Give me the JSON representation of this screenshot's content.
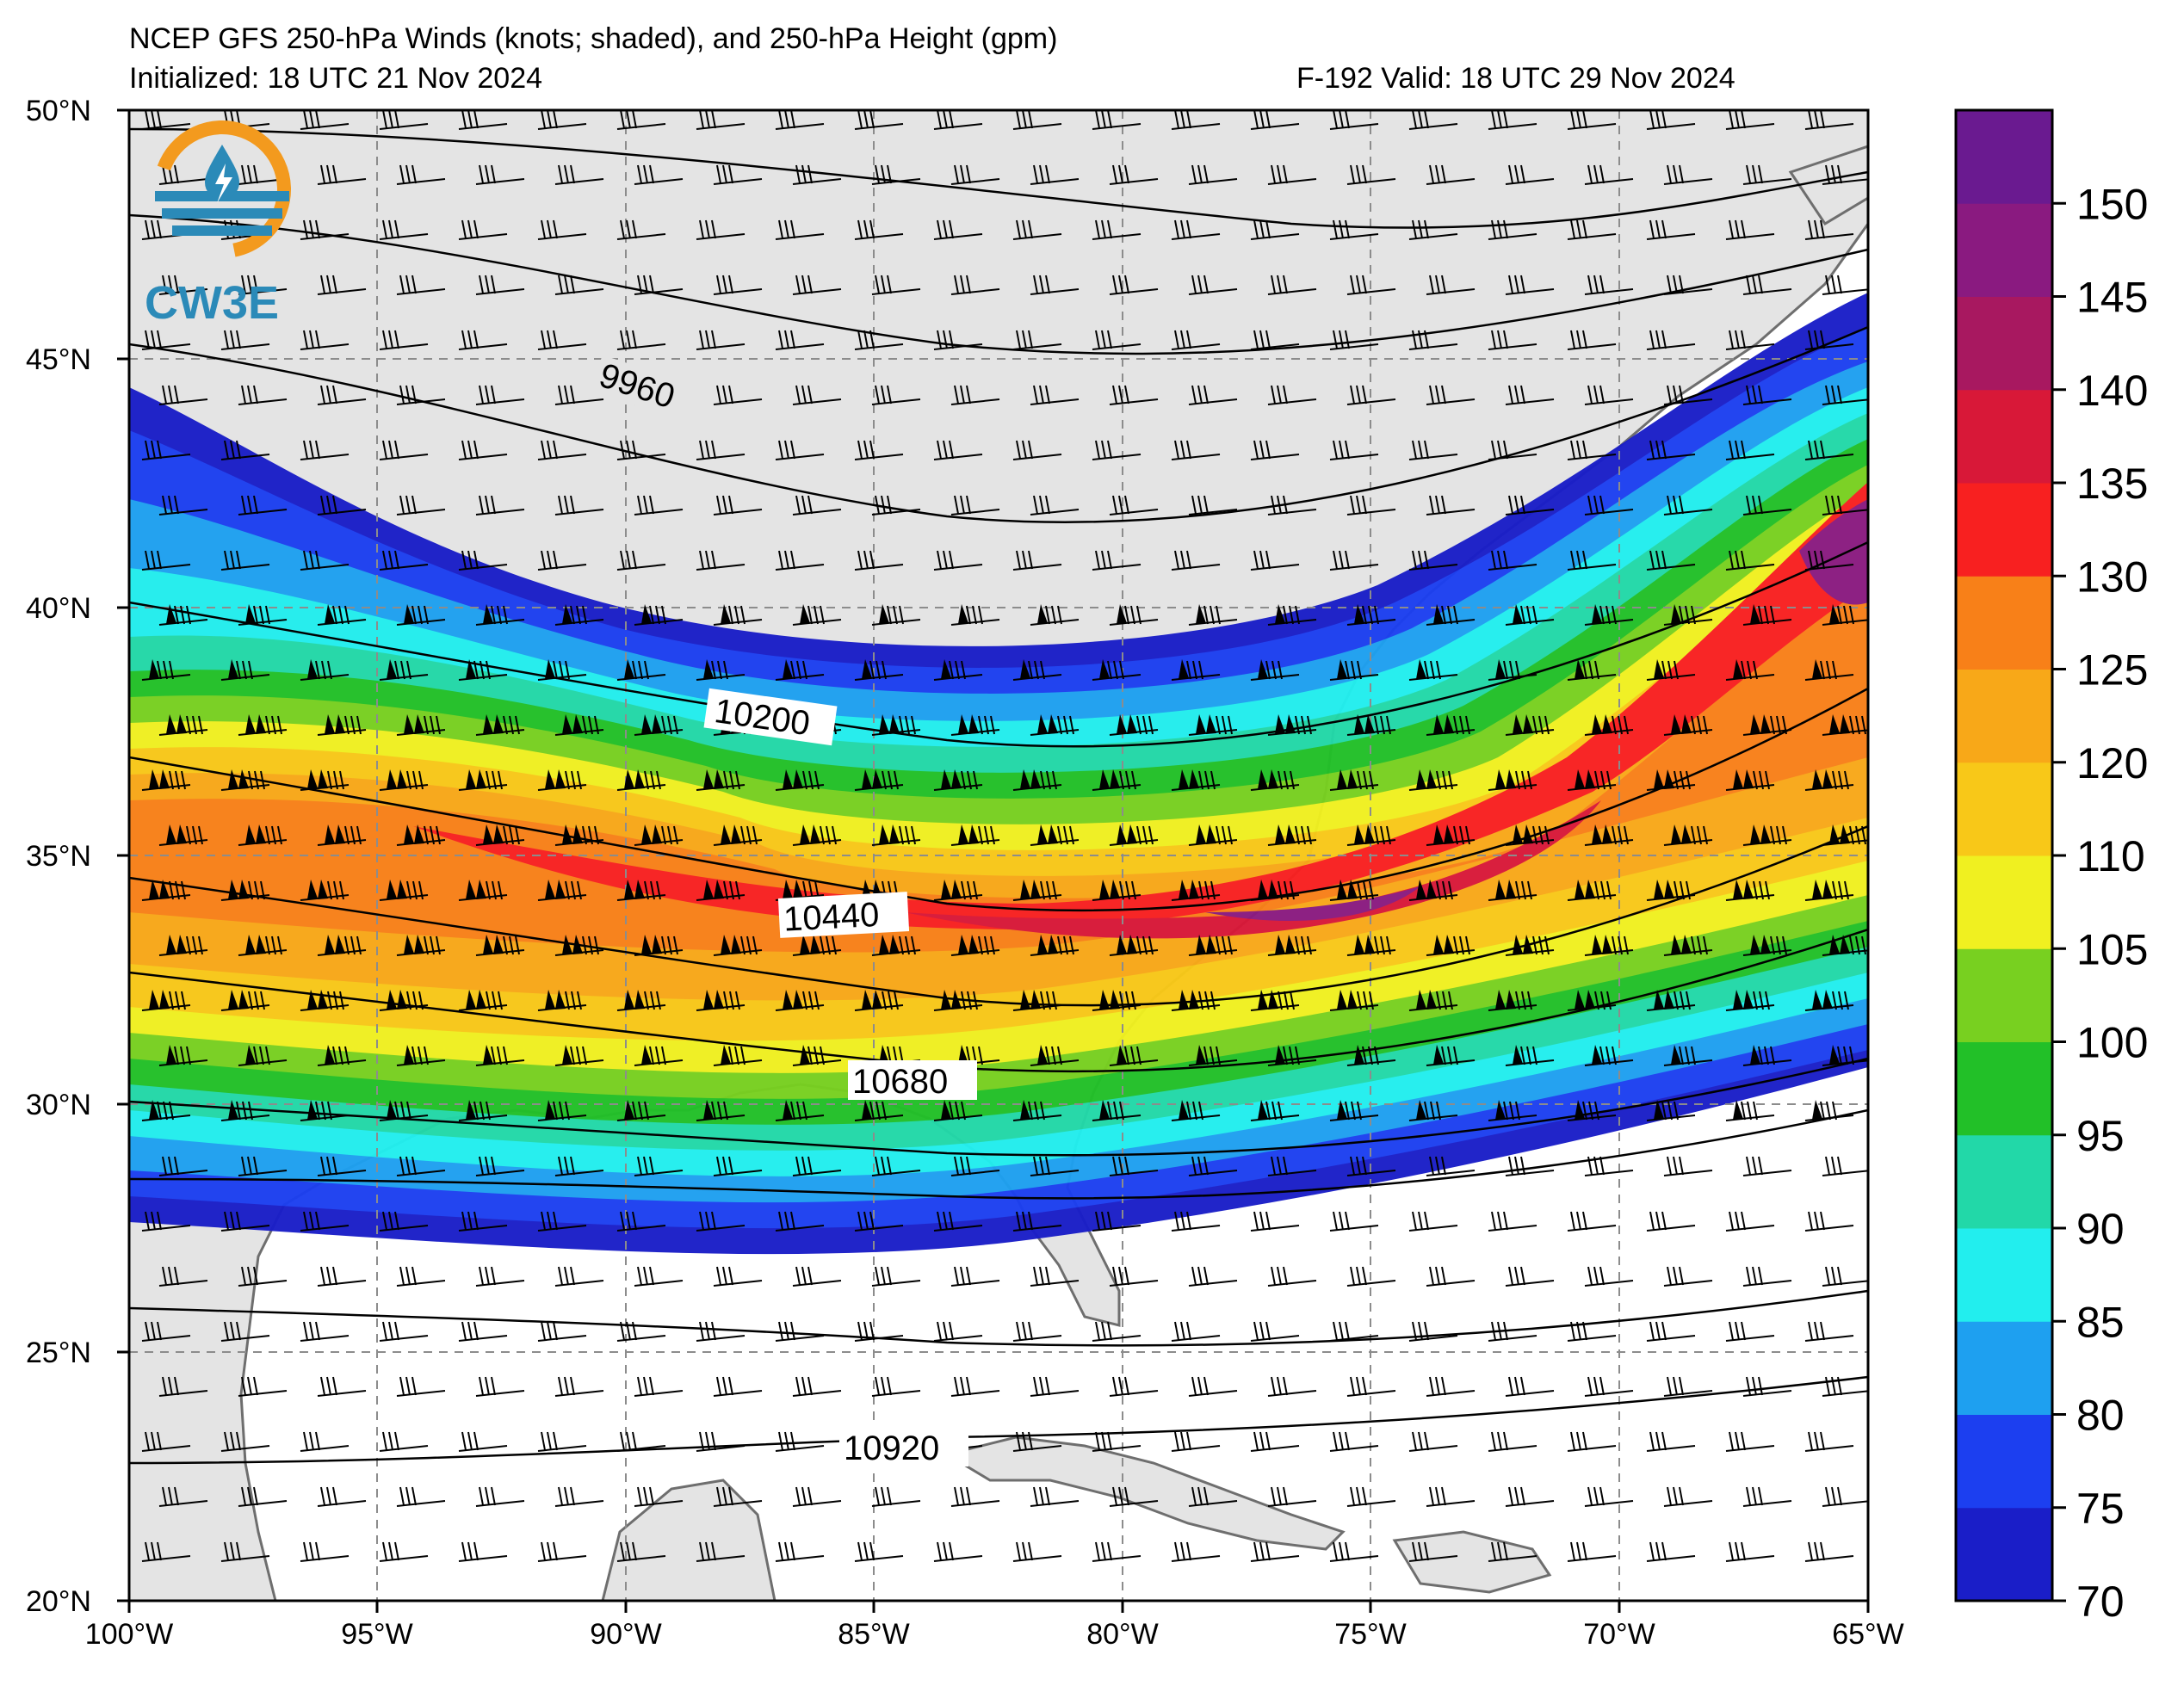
{
  "header": {
    "title": "NCEP GFS 250-hPa Winds (knots; shaded), and 250-hPa Height (gpm)",
    "initialized": "Initialized: 18 UTC 21 Nov 2024",
    "valid": "F-192  Valid: 18 UTC 29 Nov 2024"
  },
  "logo": {
    "text": "CW3E",
    "icon": "cw3e-globe-water-logo"
  },
  "axes": {
    "lon_labels": [
      "100°W",
      "95°W",
      "90°W",
      "85°W",
      "80°W",
      "75°W",
      "70°W",
      "65°W"
    ],
    "lat_labels": [
      "50°N",
      "45°N",
      "40°N",
      "35°N",
      "30°N",
      "25°N",
      "20°N"
    ]
  },
  "colorbar": {
    "labels": [
      "70",
      "75",
      "80",
      "85",
      "90",
      "95",
      "100",
      "105",
      "110",
      "120",
      "125",
      "130",
      "135",
      "140",
      "145",
      "150"
    ],
    "colors": [
      "#1a1ec8",
      "#1c3ff0",
      "#1ea0f0",
      "#22eeee",
      "#22d8a8",
      "#22c028",
      "#78d020",
      "#f0f020",
      "#f8c818",
      "#f8a818",
      "#f88018",
      "#f82020",
      "#d81838",
      "#a81860",
      "#8a1a80",
      "#6a1a90"
    ]
  },
  "contour_labels": [
    "9960",
    "10200",
    "10440",
    "10680",
    "10920"
  ],
  "colors": {
    "land": "#e4e4e4",
    "ocean": "#ffffff",
    "grid": "#8c8c8c",
    "coast": "#6e6e6e"
  }
}
